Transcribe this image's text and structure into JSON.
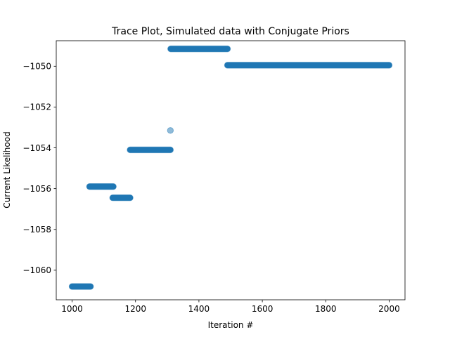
{
  "chart_data": {
    "type": "scatter",
    "title": "Trace Plot, Simulated data with Conjugate Priors",
    "xlabel": "Iteration #",
    "ylabel": "Current Likelihood",
    "xlim": [
      950,
      2050
    ],
    "ylim": [
      -1061.45,
      -1048.75
    ],
    "grid": false,
    "x_ticks": [
      1000,
      1200,
      1400,
      1600,
      1800,
      2000
    ],
    "x_tick_labels": [
      "1000",
      "1200",
      "1400",
      "1600",
      "1800",
      "2000"
    ],
    "y_ticks": [
      -1060,
      -1058,
      -1056,
      -1054,
      -1052,
      -1050
    ],
    "y_tick_labels": [
      "−1060",
      "−1058",
      "−1056",
      "−1054",
      "−1052",
      "−1050"
    ],
    "marker_color": "#1f77b4",
    "marker_alpha": 0.5,
    "series": [
      {
        "segments": [
          {
            "x_start": 1000,
            "x_end": 1058,
            "y": -1060.8
          },
          {
            "x_start": 1055,
            "x_end": 1130,
            "y": -1055.9
          },
          {
            "x_start": 1128,
            "x_end": 1183,
            "y": -1056.45
          },
          {
            "x_start": 1183,
            "x_end": 1310,
            "y": -1054.1
          },
          {
            "x_start": 1310,
            "x_end": 1310,
            "y": -1053.15
          },
          {
            "x_start": 1311,
            "x_end": 1490,
            "y": -1049.15
          },
          {
            "x_start": 1490,
            "x_end": 2000,
            "y": -1049.95
          }
        ]
      }
    ]
  }
}
